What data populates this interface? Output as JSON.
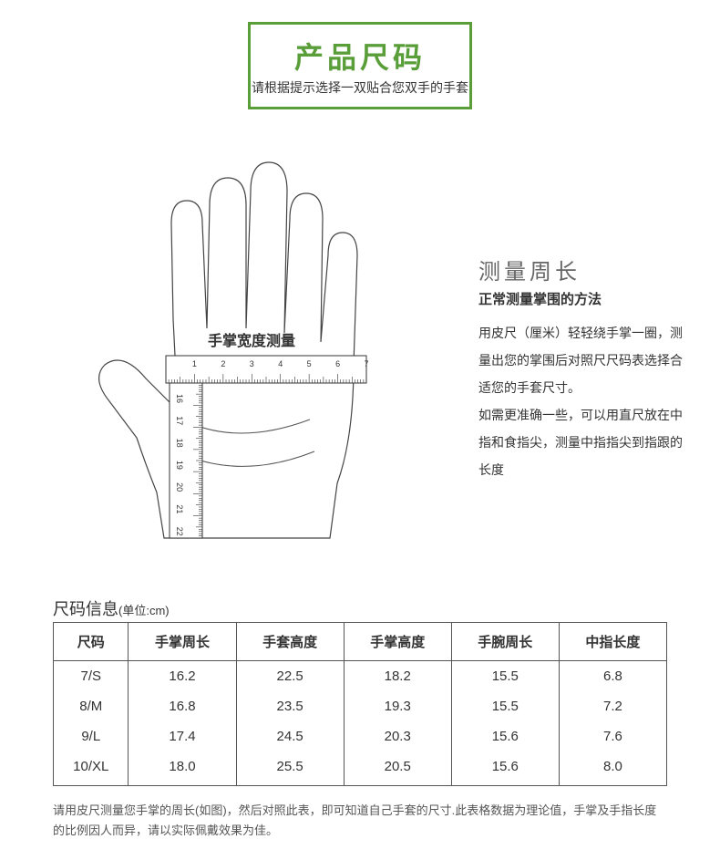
{
  "titleBox": {
    "main": "产品尺码",
    "sub": "请根据提示选择一双贴合您双手的手套",
    "borderColor": "#5a9e3a",
    "mainColor": "#5a9e3a"
  },
  "rulerLabel": "手掌宽度测量",
  "rulerHTicks": [
    "1",
    "2",
    "3",
    "4",
    "5",
    "6",
    "7"
  ],
  "rulerVTicks": [
    "16",
    "17",
    "18",
    "19",
    "20",
    "21",
    "22"
  ],
  "measure": {
    "title": "测量周长",
    "bold": "正常测量掌围的方法",
    "body": "用皮尺（厘米）轻轻绕手掌一圈，测量出您的掌围后对照尺尺码表选择合适您的手套尺寸。\n如需更准确一些，可以用直尺放在中指和食指尖，测量中指指尖到指跟的长度"
  },
  "sizeInfo": {
    "title": "尺码信息",
    "unit": "(单位:cm)"
  },
  "table": {
    "headers": [
      "尺码",
      "手掌周长",
      "手套高度",
      "手掌高度",
      "手腕周长",
      "中指长度"
    ],
    "rows": [
      [
        "7/S",
        "16.2",
        "22.5",
        "18.2",
        "15.5",
        "6.8"
      ],
      [
        "8/M",
        "16.8",
        "23.5",
        "19.3",
        "15.5",
        "7.2"
      ],
      [
        "9/L",
        "17.4",
        "24.5",
        "20.3",
        "15.6",
        "7.6"
      ],
      [
        "10/XL",
        "18.0",
        "25.5",
        "20.5",
        "15.6",
        "8.0"
      ]
    ]
  },
  "footnote": "请用皮尺测量您手掌的周长(如图)，然后对照此表，即可知道自己手套的尺寸.此表格数据为理论值，手掌及手指长度的比例因人而异，请以实际佩戴效果为佳。",
  "colors": {
    "border": "#555555",
    "text": "#333333",
    "accent": "#5a9e3a"
  }
}
